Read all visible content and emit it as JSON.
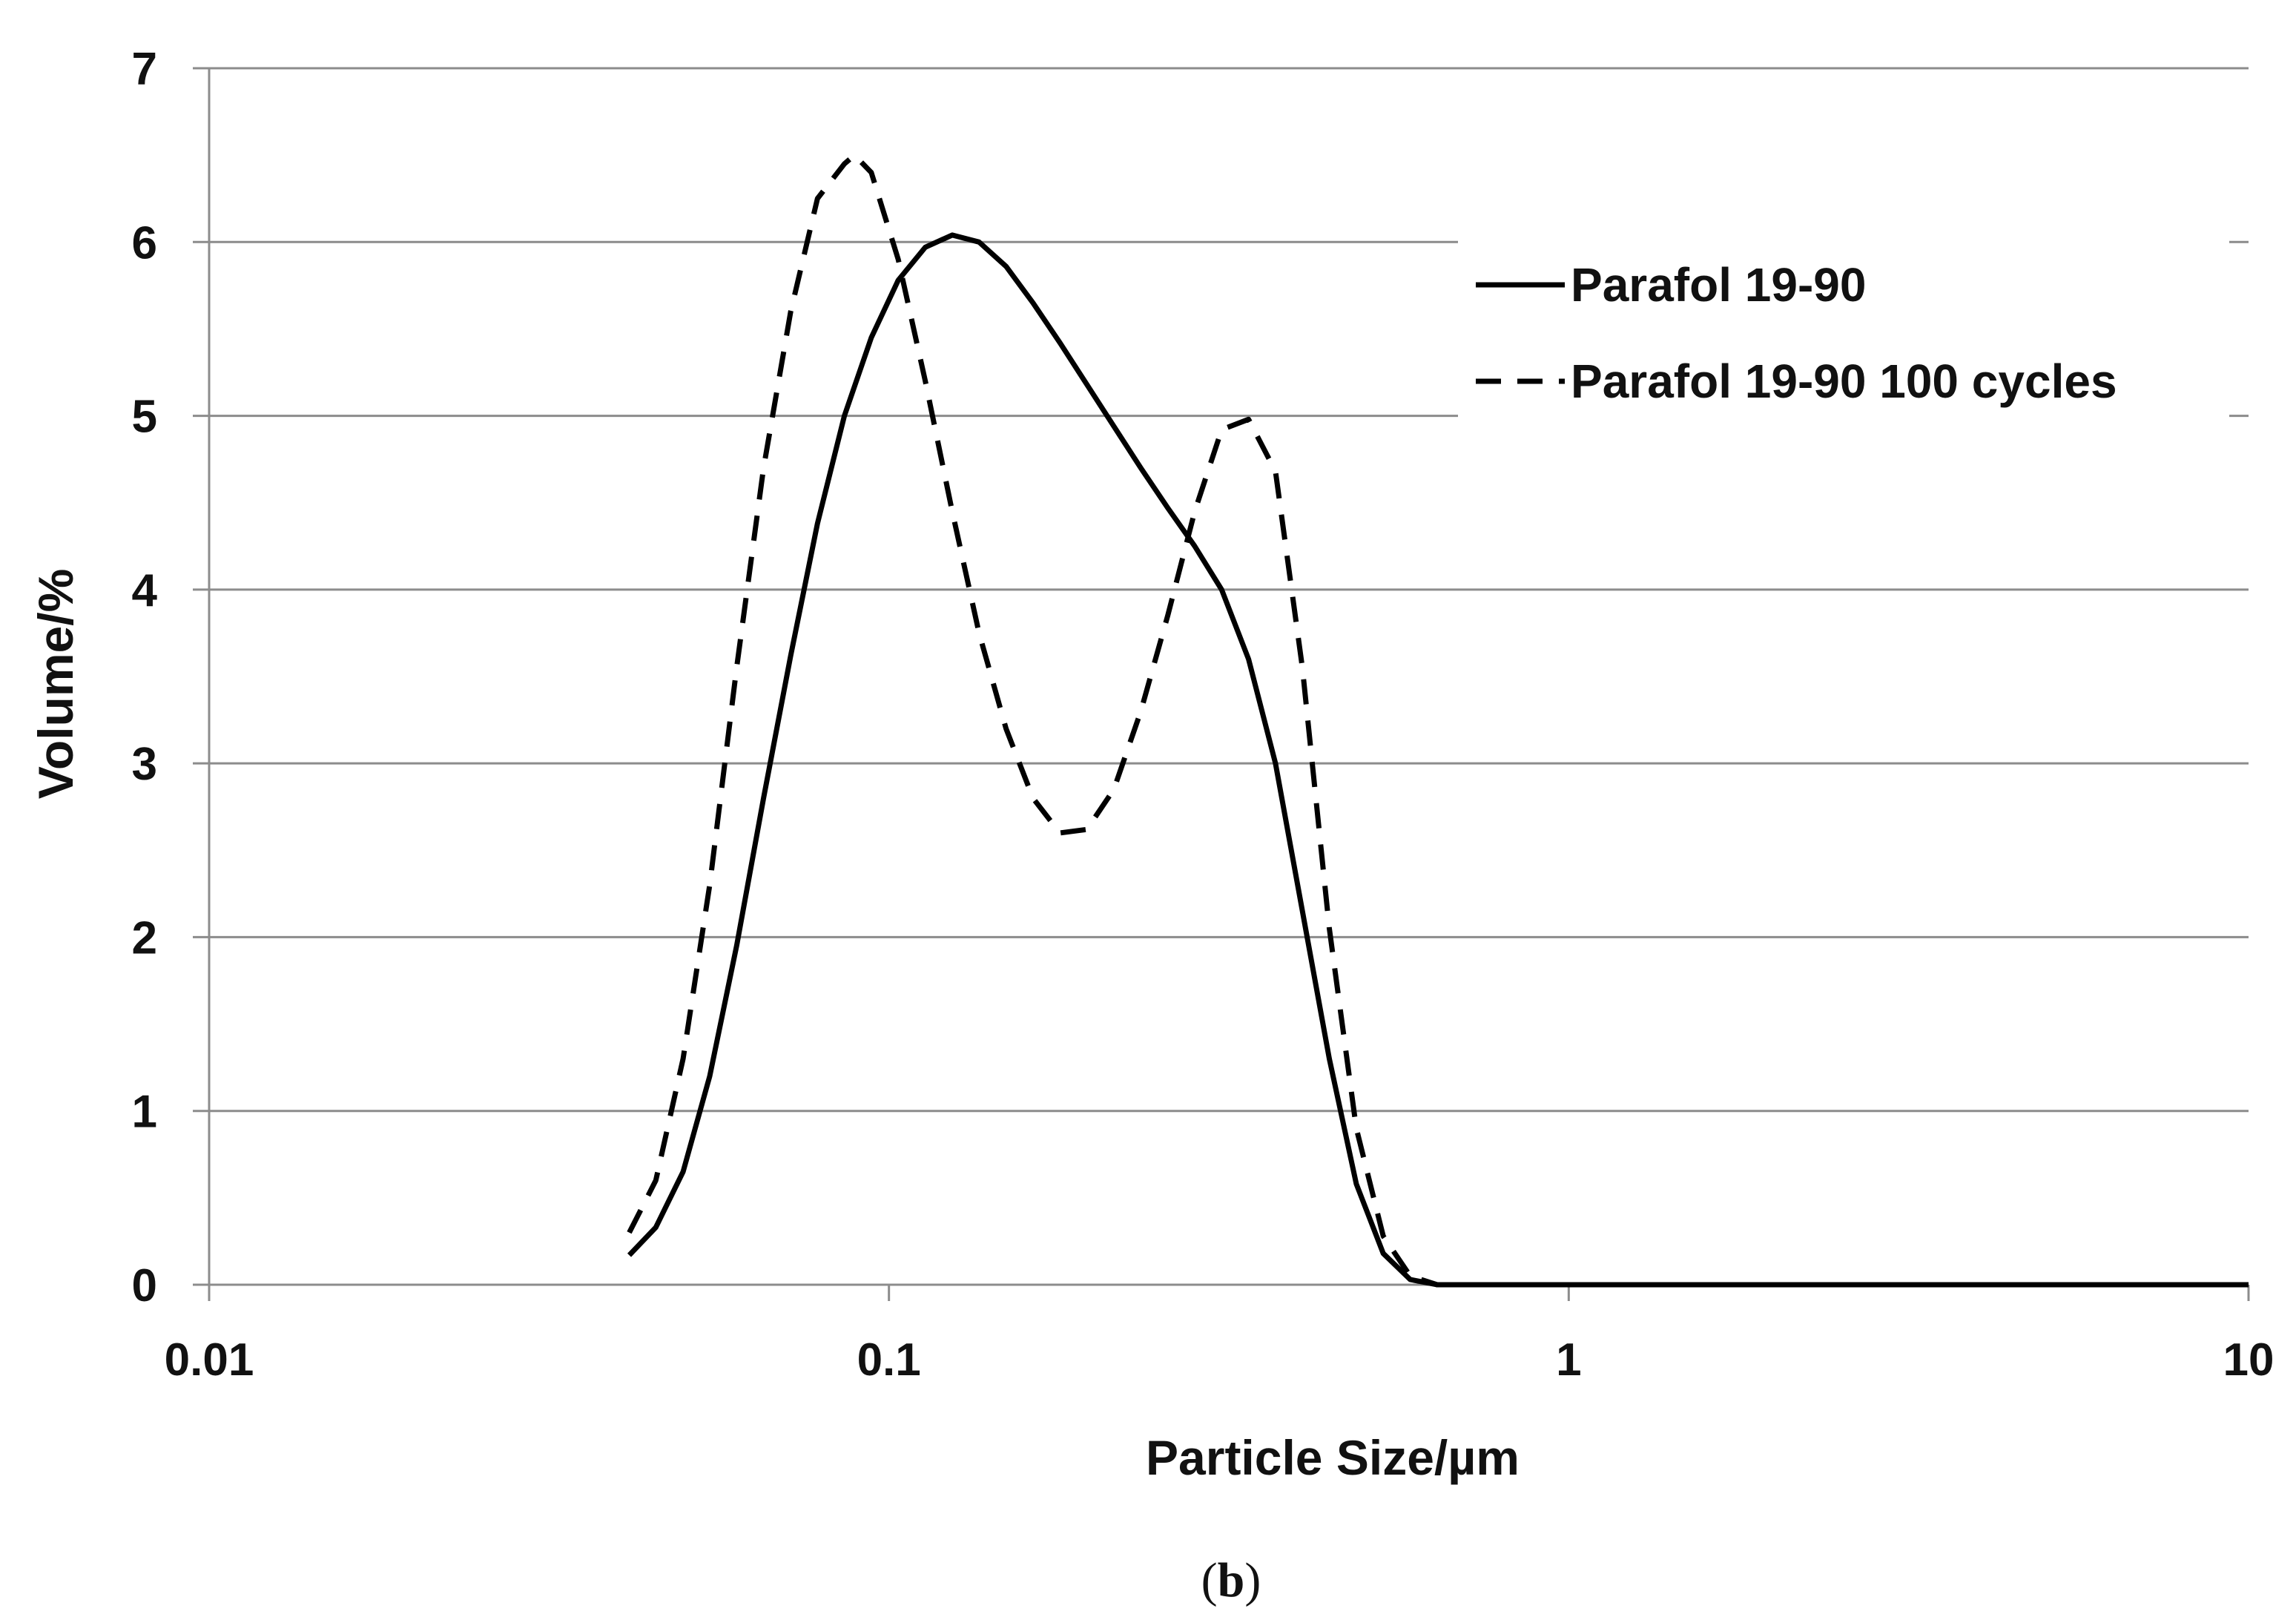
{
  "caption": {
    "prefix": "(",
    "letter": "b",
    "suffix": ")"
  },
  "chart_data": {
    "type": "line",
    "xlabel": "Particle Size/µm",
    "ylabel": "Volume/%",
    "xscale": "log",
    "xlim": [
      0.01,
      10
    ],
    "ylim": [
      0,
      7
    ],
    "x_ticks": [
      "0.01",
      "0.1",
      "1",
      "10"
    ],
    "y_ticks": [
      "0",
      "1",
      "2",
      "3",
      "4",
      "5",
      "6",
      "7"
    ],
    "grid": "horizontal",
    "legend_position": "top-right",
    "series": [
      {
        "name": "Parafol 19-90",
        "style": "solid",
        "color": "#000000",
        "x": [
          0.0415,
          0.0454,
          0.0498,
          0.0545,
          0.0597,
          0.0654,
          0.0717,
          0.0785,
          0.086,
          0.0942,
          0.1032,
          0.1131,
          0.1239,
          0.1357,
          0.1487,
          0.1629,
          0.1785,
          0.1955,
          0.2142,
          0.2347,
          0.2571,
          0.2817,
          0.3086,
          0.3381,
          0.3704,
          0.4057,
          0.4445,
          0.487,
          0.5335,
          0.5845,
          0.6403,
          0.8,
          1,
          2,
          5,
          10
        ],
        "y": [
          0.17,
          0.33,
          0.65,
          1.2,
          1.95,
          2.8,
          3.62,
          4.38,
          5.0,
          5.45,
          5.78,
          5.97,
          6.04,
          6.0,
          5.86,
          5.65,
          5.42,
          5.18,
          4.94,
          4.7,
          4.47,
          4.25,
          4.0,
          3.6,
          3.0,
          2.15,
          1.3,
          0.58,
          0.18,
          0.03,
          0.0,
          0.0,
          0.0,
          0.0,
          0.0,
          0.0
        ]
      },
      {
        "name": "Parafol 19-90 100 cycles",
        "style": "dashed",
        "color": "#000000",
        "x": [
          0.0415,
          0.0454,
          0.0498,
          0.0545,
          0.0597,
          0.0654,
          0.0717,
          0.0785,
          0.086,
          0.089,
          0.0942,
          0.1032,
          0.1131,
          0.1239,
          0.1357,
          0.1487,
          0.1629,
          0.1785,
          0.1955,
          0.2142,
          0.2347,
          0.2571,
          0.2817,
          0.3086,
          0.3381,
          0.3704,
          0.4057,
          0.4445,
          0.487,
          0.5335,
          0.5845,
          0.6403,
          0.8,
          1,
          2,
          5,
          10
        ],
        "y": [
          0.3,
          0.6,
          1.3,
          2.3,
          3.55,
          4.7,
          5.6,
          6.25,
          6.45,
          6.5,
          6.4,
          5.9,
          5.2,
          4.45,
          3.75,
          3.2,
          2.8,
          2.6,
          2.62,
          2.85,
          3.3,
          3.85,
          4.45,
          4.92,
          4.98,
          4.68,
          3.55,
          2.05,
          0.9,
          0.28,
          0.05,
          0.0,
          0.0,
          0.0,
          0.0,
          0.0,
          0.0
        ]
      }
    ]
  }
}
